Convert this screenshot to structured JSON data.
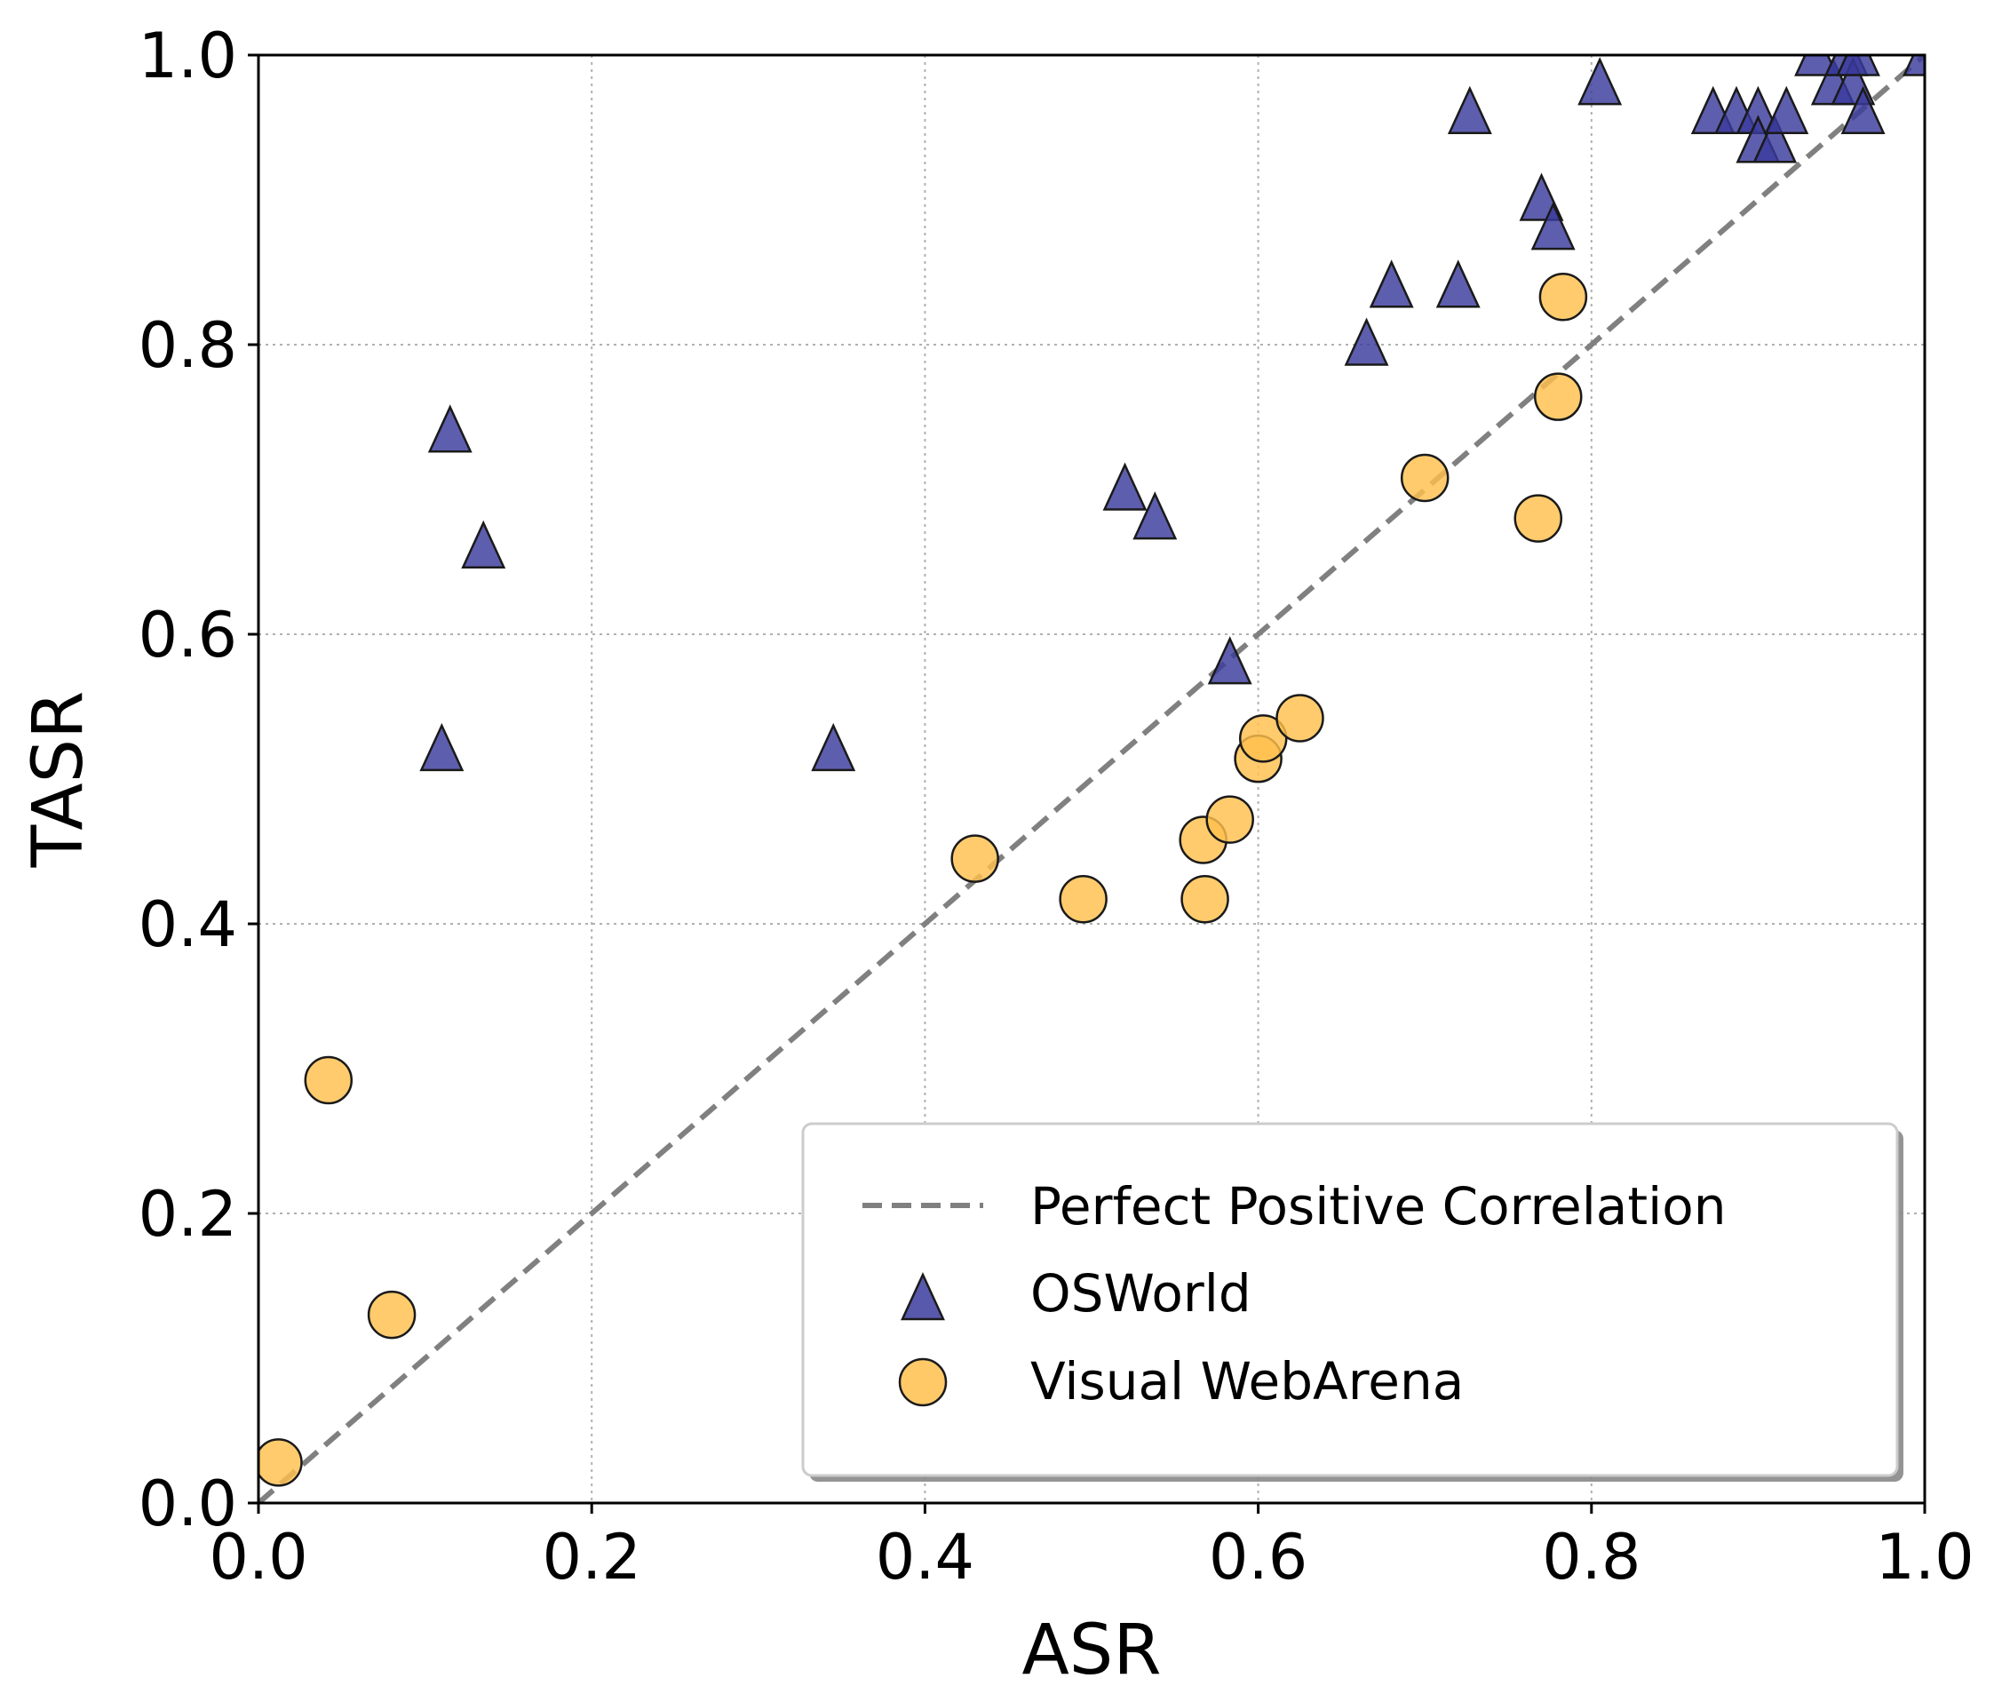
{
  "chart_data": {
    "type": "scatter",
    "title": "",
    "xlabel": "ASR",
    "ylabel": "TASR",
    "xlim": [
      0.0,
      1.0
    ],
    "ylim": [
      0.0,
      1.0
    ],
    "xticks": [
      "0.0",
      "0.2",
      "0.4",
      "0.6",
      "0.8",
      "1.0"
    ],
    "yticks": [
      "0.0",
      "0.2",
      "0.4",
      "0.6",
      "0.8",
      "1.0"
    ],
    "grid": true,
    "legend_position": "bottom-right",
    "reference_line": {
      "name": "Perfect Positive Correlation",
      "from": [
        0,
        0
      ],
      "to": [
        1,
        1
      ],
      "color": "#808080",
      "style": "dashed"
    },
    "series": [
      {
        "name": "OSWorld",
        "marker": "triangle",
        "color": "#3b3b9e",
        "points": [
          [
            0.11,
            0.52
          ],
          [
            0.115,
            0.74
          ],
          [
            0.135,
            0.66
          ],
          [
            0.345,
            0.52
          ],
          [
            0.52,
            0.7
          ],
          [
            0.538,
            0.68
          ],
          [
            0.583,
            0.58
          ],
          [
            0.665,
            0.8
          ],
          [
            0.68,
            0.84
          ],
          [
            0.72,
            0.84
          ],
          [
            0.727,
            0.96
          ],
          [
            0.77,
            0.9
          ],
          [
            0.777,
            0.88
          ],
          [
            0.805,
            0.98
          ],
          [
            0.873,
            0.96
          ],
          [
            0.887,
            0.96
          ],
          [
            0.9,
            0.96
          ],
          [
            0.9,
            0.94
          ],
          [
            0.91,
            0.94
          ],
          [
            0.917,
            0.96
          ],
          [
            0.935,
            1.0
          ],
          [
            0.945,
            0.98
          ],
          [
            0.953,
            1.0
          ],
          [
            0.957,
            0.98
          ],
          [
            0.96,
            1.0
          ],
          [
            0.963,
            0.96
          ],
          [
            1.0,
            1.0
          ]
        ]
      },
      {
        "name": "Visual WebArena",
        "marker": "circle",
        "color": "#ffc04d",
        "points": [
          [
            0.012,
            0.028
          ],
          [
            0.042,
            0.292
          ],
          [
            0.08,
            0.13
          ],
          [
            0.43,
            0.445
          ],
          [
            0.495,
            0.417
          ],
          [
            0.567,
            0.458
          ],
          [
            0.568,
            0.417
          ],
          [
            0.583,
            0.472
          ],
          [
            0.6,
            0.514
          ],
          [
            0.603,
            0.528
          ],
          [
            0.625,
            0.542
          ],
          [
            0.7,
            0.708
          ],
          [
            0.768,
            0.68
          ],
          [
            0.78,
            0.764
          ],
          [
            0.783,
            0.833
          ]
        ]
      }
    ]
  }
}
